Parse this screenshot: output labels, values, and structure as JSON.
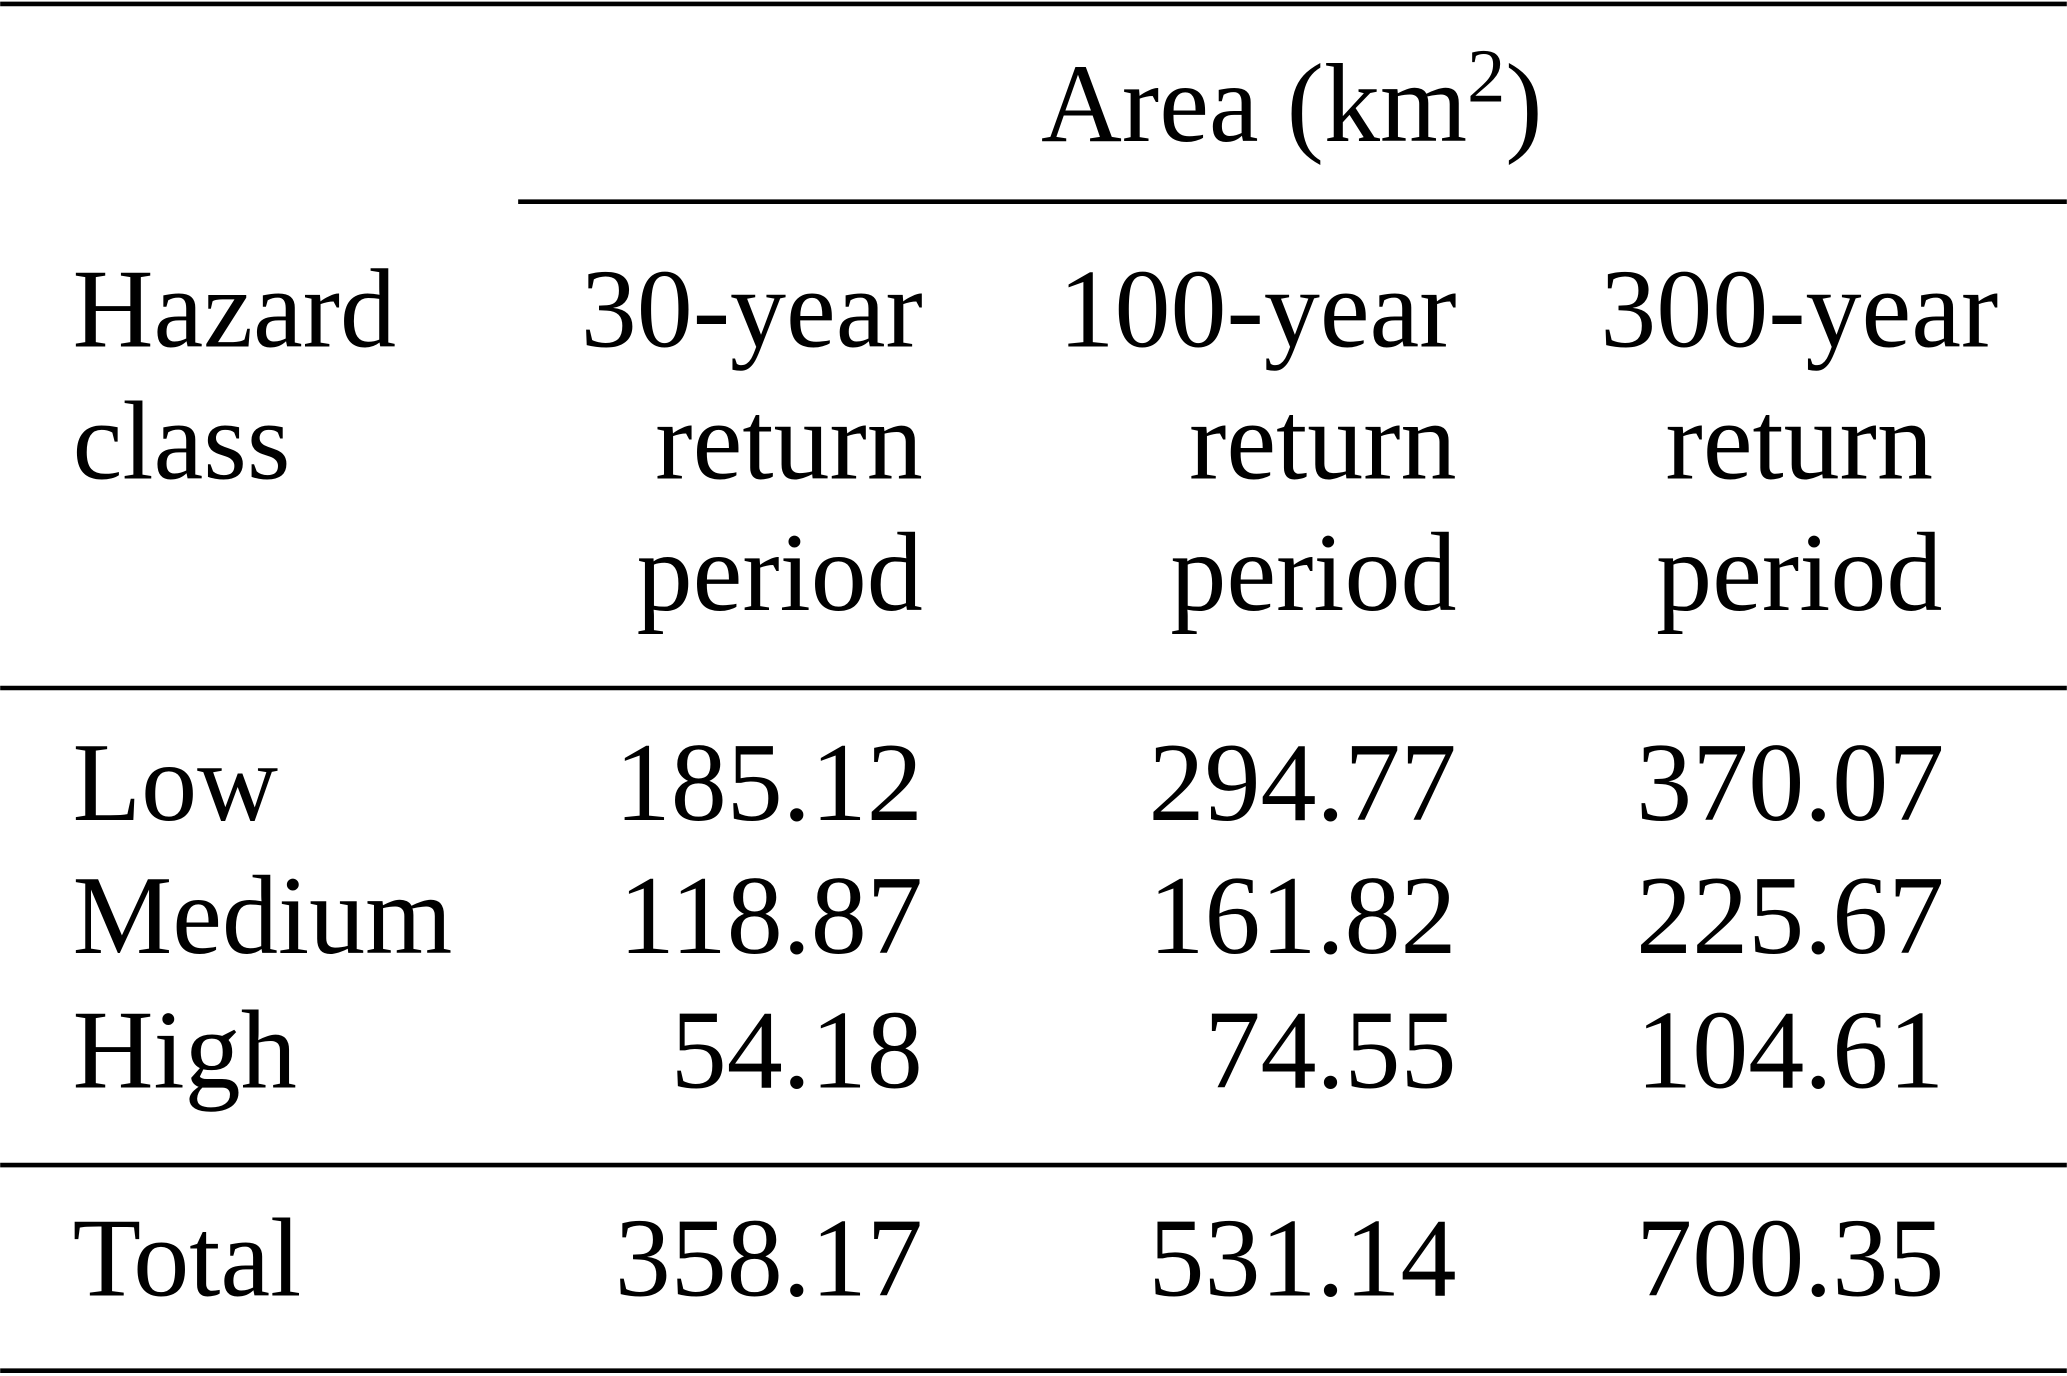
{
  "table": {
    "group_header": {
      "text": "Area (km",
      "superscript": "2",
      "suffix": ")"
    },
    "columns": [
      [
        "Hazard",
        "class"
      ],
      [
        "30-year",
        "return",
        "period"
      ],
      [
        "100-year",
        "return",
        "period"
      ],
      [
        "300-year",
        "return",
        "period"
      ]
    ],
    "rows": [
      [
        "Low",
        185.12,
        294.77,
        370.07
      ],
      [
        "Medium",
        118.87,
        161.82,
        225.67
      ],
      [
        "High",
        54.18,
        74.55,
        104.61
      ]
    ],
    "total": [
      "Total",
      358.17,
      531.14,
      700.35
    ]
  }
}
